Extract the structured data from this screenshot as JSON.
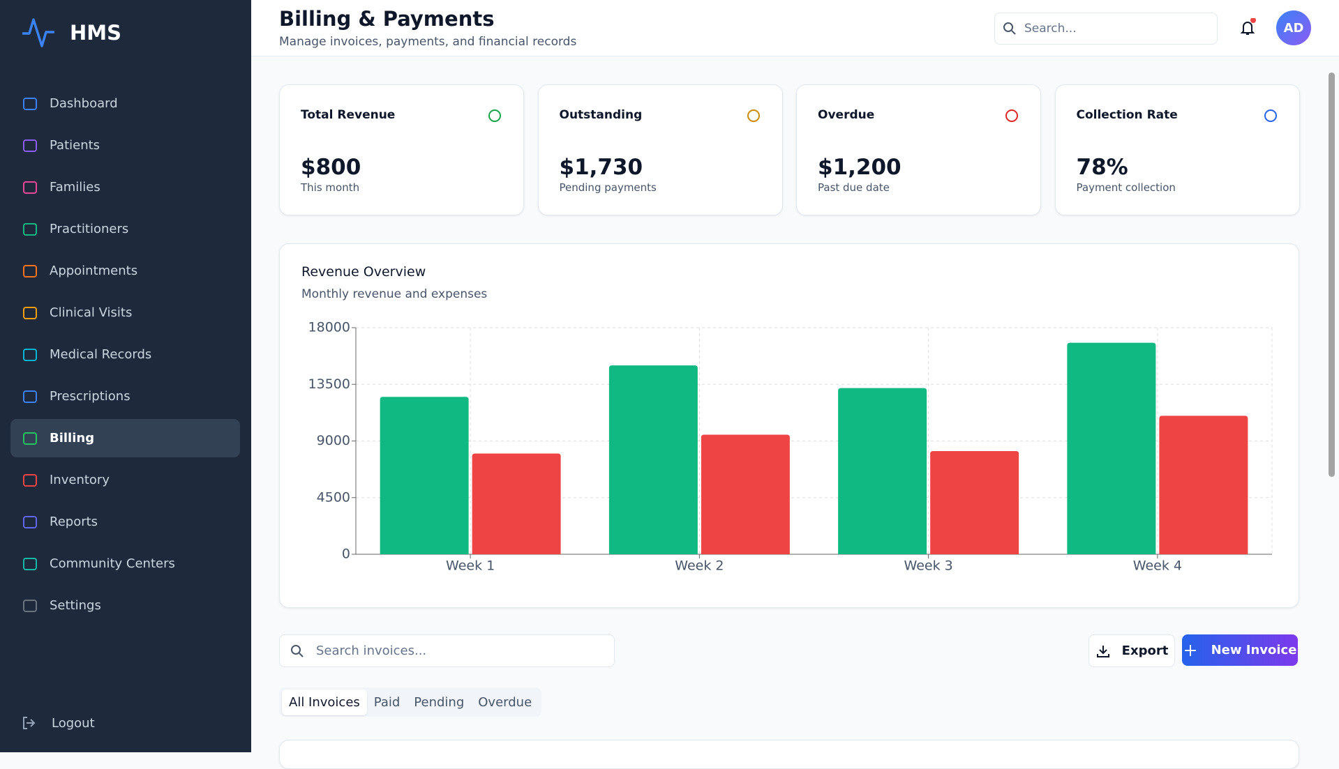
{
  "sidebar": {
    "logo": "HMS",
    "nav": [
      "Dashboard",
      "Patients",
      "Families",
      "Practitioners",
      "Appointments",
      "Clinical Visits",
      "Medical Records",
      "Prescriptions",
      "Billing",
      "Inventory",
      "Reports",
      "Community Centers",
      "Settings"
    ],
    "logout": "Logout"
  },
  "header": {
    "title": "Billing & Payments",
    "subtitle": "Manage invoices, payments, and financial records",
    "search": "Search...",
    "avatar": "AD"
  },
  "stats": [
    {
      "label": "Total Revenue",
      "value": "$800",
      "sub": "This month"
    },
    {
      "label": "Outstanding",
      "value": "$1,730",
      "sub": "Pending payments"
    },
    {
      "label": "Overdue",
      "value": "$1,200",
      "sub": "Past due date"
    },
    {
      "label": "Collection Rate",
      "value": "78%",
      "sub": "Payment collection"
    }
  ],
  "chart_data": {
    "type": "bar",
    "title": "Revenue Overview",
    "subtitle": "Monthly revenue and expenses",
    "categories": [
      "Week 1",
      "Week 2",
      "Week 3",
      "Week 4"
    ],
    "series": [
      {
        "color": "#10b981",
        "values": [
          12500,
          15000,
          13200,
          16800
        ]
      },
      {
        "color": "#ef4444",
        "values": [
          8000,
          9500,
          8200,
          11000
        ]
      }
    ],
    "ylim": [
      0,
      18000
    ],
    "yticks": [
      0,
      4500,
      9000,
      13500,
      18000
    ],
    "grid": true
  },
  "invoices": {
    "search": "Search invoices...",
    "export": "Export",
    "new": "New Invoice",
    "tabs": [
      "All Invoices",
      "Paid",
      "Pending",
      "Overdue"
    ]
  }
}
